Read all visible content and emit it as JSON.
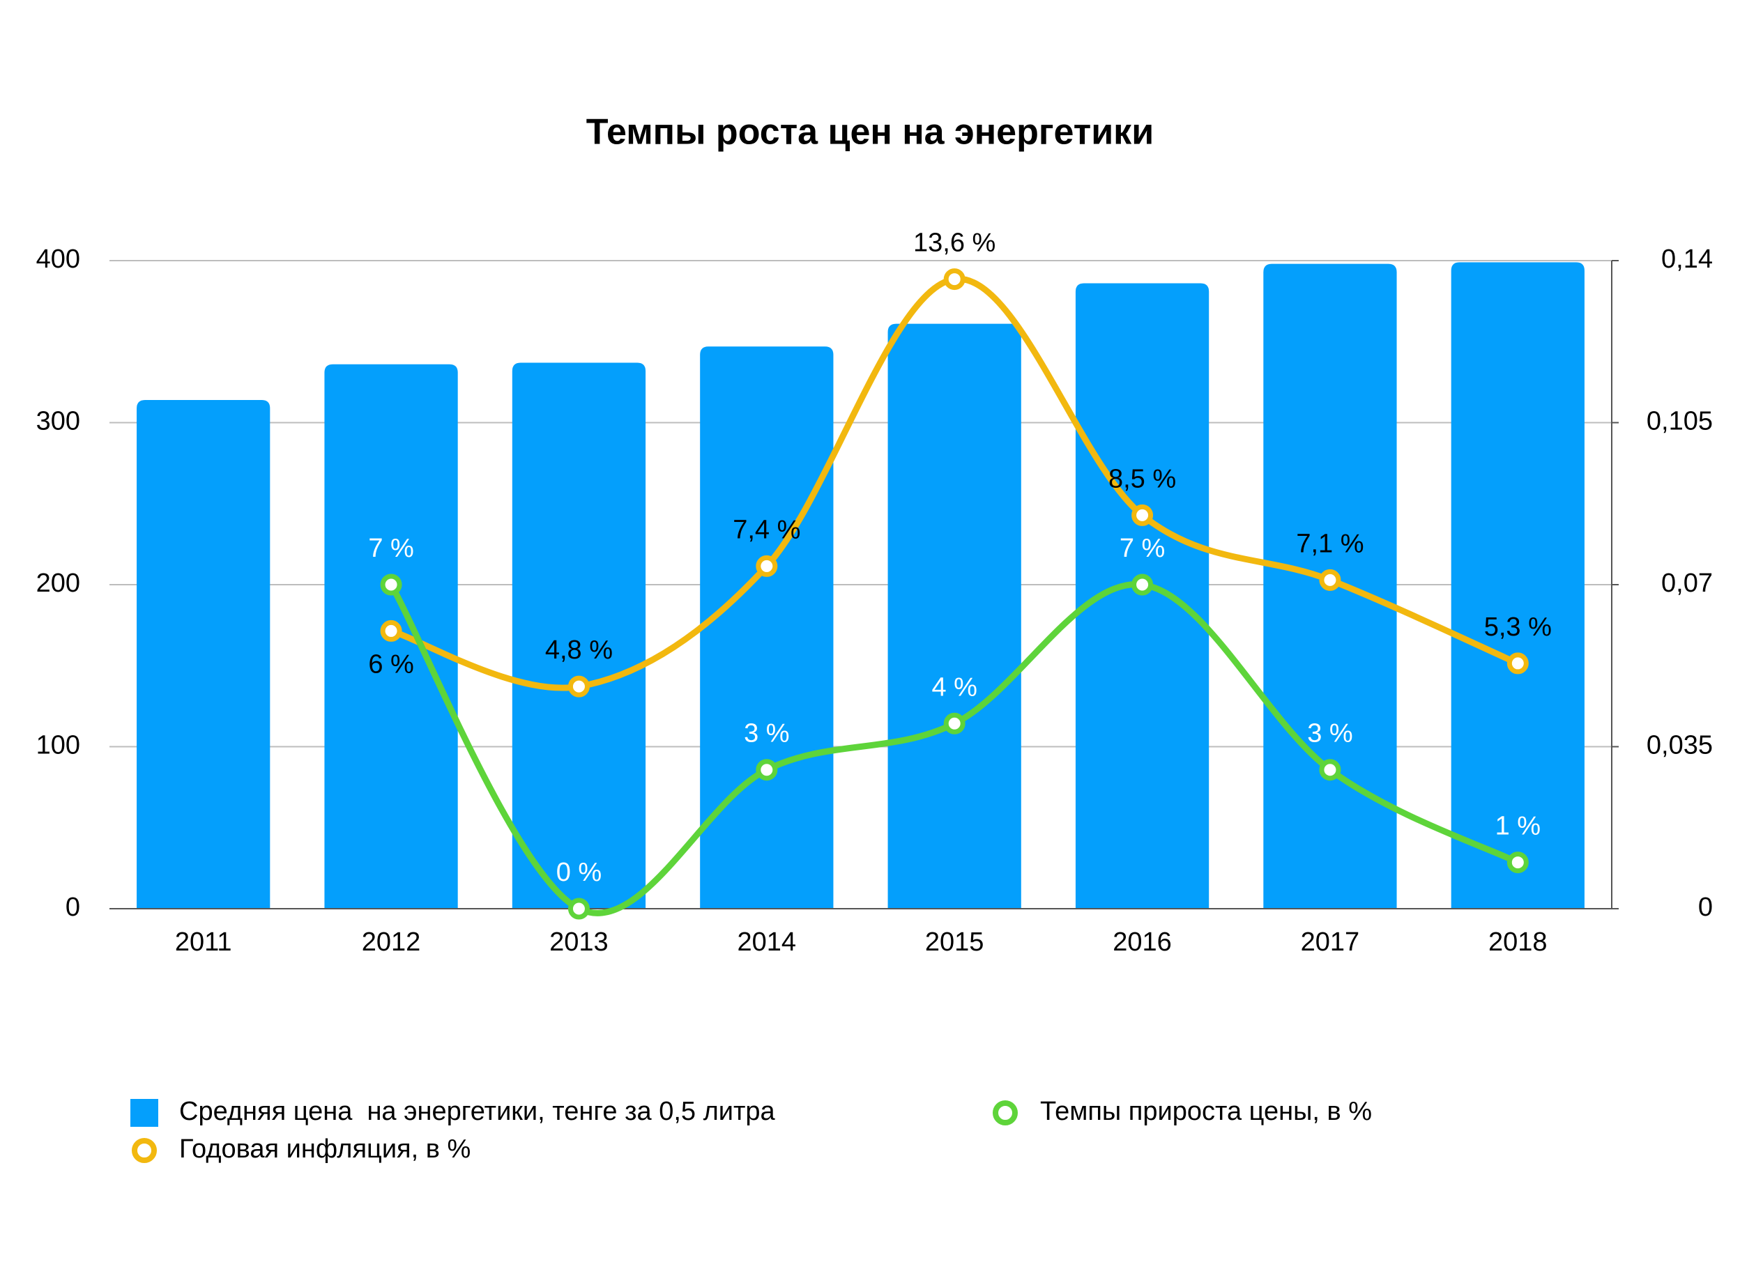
{
  "chart_data": {
    "type": "bar-line",
    "title": "Темпы роста цен на энергетики",
    "categories": [
      "2011",
      "2012",
      "2013",
      "2014",
      "2015",
      "2016",
      "2017",
      "2018"
    ],
    "series": [
      {
        "name": "Средняя цена  на энергетики, тенге за 0,5 литра",
        "type": "bar",
        "color": "#049ffc",
        "values": [
          314,
          336,
          337,
          347,
          361,
          386,
          398,
          399
        ]
      },
      {
        "name": "Годовая инфляция, в %",
        "type": "line",
        "axis": "y2",
        "color": "#f2b80f",
        "values": [
          null,
          0.06,
          0.048,
          0.074,
          0.136,
          0.085,
          0.071,
          0.053
        ],
        "value_labels": [
          null,
          "6 %",
          "4,8 %",
          "7,4 %",
          "13,6 %",
          "8,5 %",
          "7,1 %",
          "5,3 %"
        ],
        "label_color": "#000000"
      },
      {
        "name": "Темпы прироста цены, в %",
        "type": "line",
        "axis": "y2",
        "color": "#5ed43a",
        "values": [
          null,
          0.07,
          0,
          0.03,
          0.04,
          0.07,
          0.03,
          0.01
        ],
        "value_labels": [
          null,
          "7 %",
          "0 %",
          "3 %",
          "4 %",
          "7 %",
          "3 %",
          "1 %"
        ],
        "label_color": "#ffffff"
      }
    ],
    "ylim": [
      0,
      400
    ],
    "yticks": [
      0,
      100,
      200,
      300,
      400
    ],
    "y2lim": [
      0,
      0.14
    ],
    "y2ticks": [
      0,
      {
        "value": 0.035,
        "label": "0,035"
      },
      {
        "value": 0.07,
        "label": "0,07"
      },
      {
        "value": 0.105,
        "label": "0,105"
      },
      {
        "value": 0.14,
        "label": "0,14"
      }
    ],
    "grid": true
  }
}
